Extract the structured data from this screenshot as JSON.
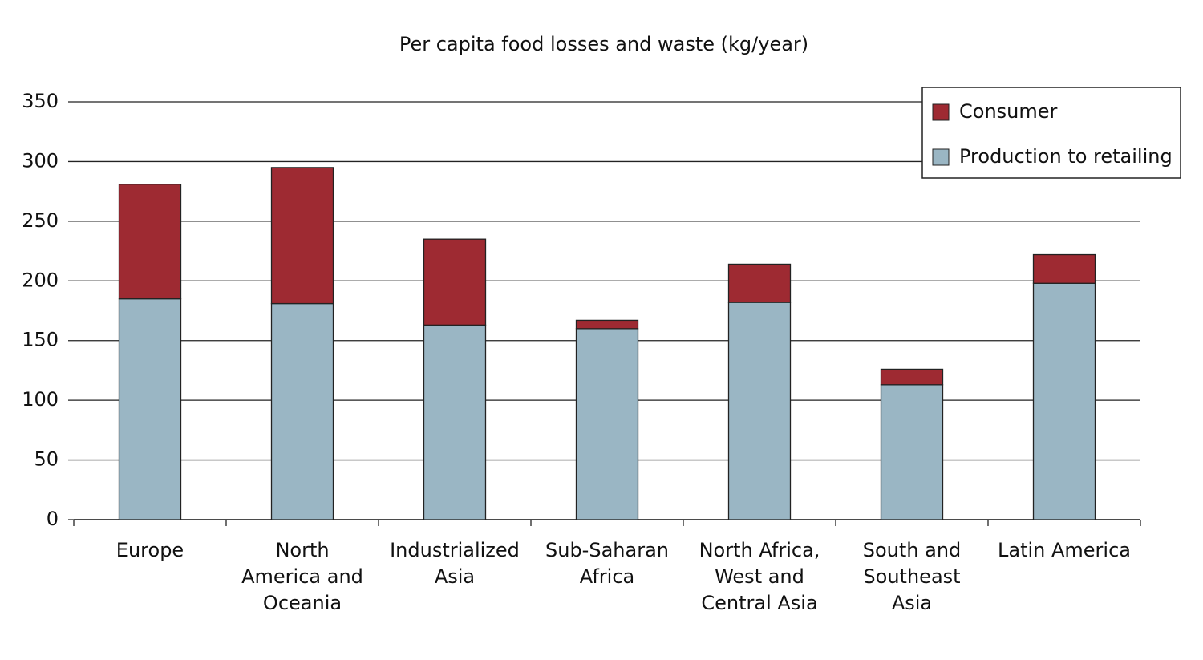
{
  "chart_data": {
    "type": "stacked_bar",
    "title": "Per capita food losses and waste (kg/year)",
    "categories": [
      "Europe",
      "North\nAmerica and\nOceania",
      "Industrialized\nAsia",
      "Sub-Saharan\nAfrica",
      "North Africa,\nWest and\nCentral Asia",
      "South and\nSoutheast\nAsia",
      "Latin America"
    ],
    "series": [
      {
        "name": "Production to retailing",
        "color": "#9ab6c4",
        "values": [
          185,
          181,
          163,
          160,
          182,
          113,
          198
        ]
      },
      {
        "name": "Consumer",
        "color": "#9e2a32",
        "values": [
          96,
          114,
          72,
          7,
          32,
          13,
          24
        ]
      }
    ],
    "ylim": [
      0,
      350
    ],
    "yticks": [
      0,
      50,
      100,
      150,
      200,
      250,
      300,
      350
    ],
    "grid": true,
    "legend": "top-right"
  }
}
